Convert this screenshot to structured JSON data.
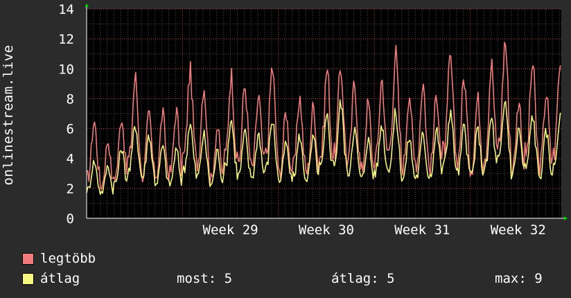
{
  "chart_data": {
    "type": "line",
    "ylabel": "onlinestream.live",
    "xlabel": "",
    "ylim": [
      0,
      14
    ],
    "y_ticks": [
      "0",
      "2",
      "4",
      "6",
      "8",
      "10",
      "12",
      "14"
    ],
    "x_range_weeks": [
      28.0,
      32.95
    ],
    "x_ticks": [
      {
        "week": 29,
        "label": "Week 29"
      },
      {
        "week": 30,
        "label": "Week 30"
      },
      {
        "week": 31,
        "label": "Week 31"
      },
      {
        "week": 32,
        "label": "Week 32"
      }
    ],
    "grid": true,
    "legend_placement": "bottom-left",
    "series": [
      {
        "name": "legtöbb",
        "color": "#f27b7b",
        "daily_values": [
          6.5,
          5.2,
          6.8,
          9.4,
          6.9,
          7.0,
          7.2,
          9.8,
          8.9,
          6.1,
          9.6,
          8.9,
          8.1,
          10.1,
          7.1,
          8.1,
          7.5,
          10.0,
          10.1,
          9.0,
          7.7,
          9.3,
          11.0,
          8.4,
          9.1,
          8.3,
          10.6,
          9.4,
          8.0,
          10.3,
          11.9,
          7.9,
          10.3,
          8.4,
          10.2
        ]
      },
      {
        "name": "átlag",
        "color": "#f5f580",
        "daily_values": [
          3.8,
          3.5,
          4.7,
          6.3,
          5.6,
          4.8,
          4.6,
          6.4,
          5.6,
          4.5,
          6.6,
          5.7,
          5.7,
          6.6,
          5.0,
          5.5,
          5.4,
          6.8,
          7.7,
          6.0,
          5.3,
          6.3,
          7.0,
          5.4,
          5.6,
          5.9,
          7.2,
          6.1,
          5.9,
          6.7,
          7.8,
          6.0,
          6.9,
          5.8,
          6.7
        ]
      }
    ]
  },
  "legend": [
    {
      "label": "legtöbb",
      "color": "#f27b7b"
    },
    {
      "label": "átlag",
      "color": "#f5f580"
    }
  ],
  "stats": {
    "most": "most: 5",
    "atlag": "átlag: 5",
    "max": "max: 9"
  }
}
